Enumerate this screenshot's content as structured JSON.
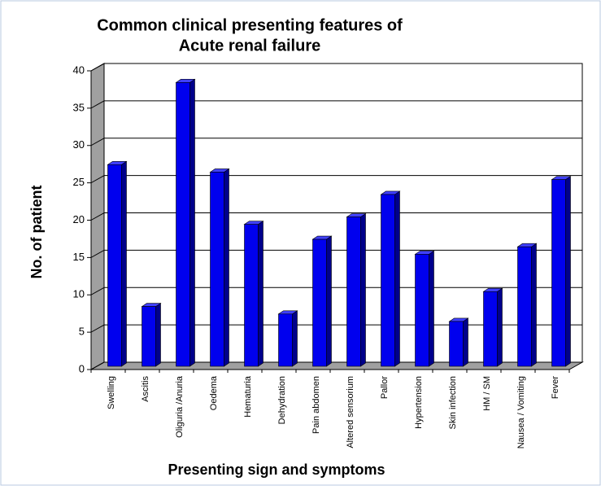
{
  "chart_data": {
    "type": "bar",
    "title_lines": [
      "Common clinical presenting features of",
      "Acute renal failure"
    ],
    "y_label": "No. of patient",
    "x_label": "Presenting sign and symptoms",
    "categories": [
      "Swelling",
      "Ascitis",
      "Oliguria /Anuria",
      "Oedema",
      "Hematuria",
      "Dehydration",
      "Pain abdomen",
      "Altered sensorium",
      "Pallor",
      "Hypertension",
      "Skin infection",
      "HM / SM",
      "Nausea / Vomiting",
      "Fever"
    ],
    "values": [
      27,
      8,
      38,
      26,
      19,
      7,
      17,
      20,
      23,
      15,
      6,
      10,
      16,
      25
    ],
    "color": "#0000ee",
    "ylim": [
      0,
      40
    ],
    "yticks": [
      0,
      5,
      10,
      15,
      20,
      25,
      30,
      35,
      40
    ],
    "grid": true
  }
}
